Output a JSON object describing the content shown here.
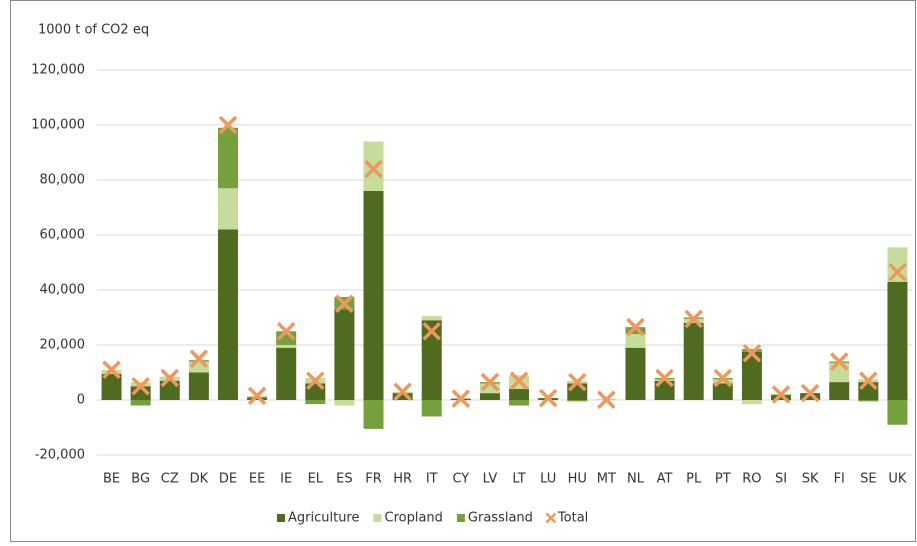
{
  "chart_data": {
    "type": "bar",
    "stacked": true,
    "y_label": "1000 t of CO2 eq",
    "categories": [
      "BE",
      "BG",
      "CZ",
      "DK",
      "DE",
      "EE",
      "IE",
      "EL",
      "ES",
      "FR",
      "HR",
      "IT",
      "CY",
      "LV",
      "LT",
      "LU",
      "HU",
      "MT",
      "NL",
      "AT",
      "PL",
      "PT",
      "RO",
      "SI",
      "SK",
      "FI",
      "SE",
      "UK"
    ],
    "series": [
      {
        "name": "Agriculture",
        "color": "#4e6b1f",
        "values": [
          9500,
          5000,
          7000,
          10000,
          62000,
          1000,
          19000,
          6000,
          33000,
          76000,
          2500,
          29000,
          500,
          2500,
          4000,
          700,
          6000,
          100,
          19000,
          7000,
          28000,
          6000,
          17500,
          1800,
          2500,
          6500,
          6500,
          43000
        ]
      },
      {
        "name": "Cropland",
        "color": "#c5dc9c",
        "values": [
          1500,
          1500,
          1500,
          4000,
          15000,
          500,
          1000,
          2000,
          -2000,
          18000,
          500,
          1500,
          0,
          3500,
          5000,
          0,
          1000,
          0,
          5000,
          500,
          1500,
          1500,
          -1500,
          0,
          0,
          7000,
          1000,
          12500
        ]
      },
      {
        "name": "Grassland",
        "color": "#76a03c",
        "values": [
          0,
          -2000,
          0,
          500,
          22000,
          0,
          5000,
          -1500,
          4500,
          -10500,
          0,
          -6000,
          0,
          500,
          -2000,
          0,
          -500,
          0,
          2500,
          500,
          500,
          500,
          1000,
          200,
          0,
          500,
          -500,
          -9000
        ]
      },
      {
        "name": "Total",
        "color": "#f0975a",
        "marker": "x",
        "values": [
          11000,
          5000,
          8000,
          15000,
          100000,
          1500,
          25000,
          7000,
          35000,
          84000,
          3000,
          25000,
          500,
          6500,
          7000,
          700,
          6500,
          100,
          26500,
          8000,
          29500,
          8000,
          17000,
          2000,
          2500,
          14000,
          7000,
          46500
        ]
      }
    ],
    "ylim": [
      -20000,
      120000
    ],
    "yticks": [
      {
        "value": -20000,
        "label": "-20,000"
      },
      0,
      {
        "value": 20000,
        "label": "20,000"
      },
      {
        "value": 40000,
        "label": "40,000"
      },
      {
        "value": 60000,
        "label": "60,000"
      },
      {
        "value": 80000,
        "label": "80,000"
      },
      {
        "value": 100000,
        "label": "100,000"
      },
      {
        "value": 120000,
        "label": "120,000"
      }
    ],
    "grid": true,
    "legend": "bottom"
  }
}
